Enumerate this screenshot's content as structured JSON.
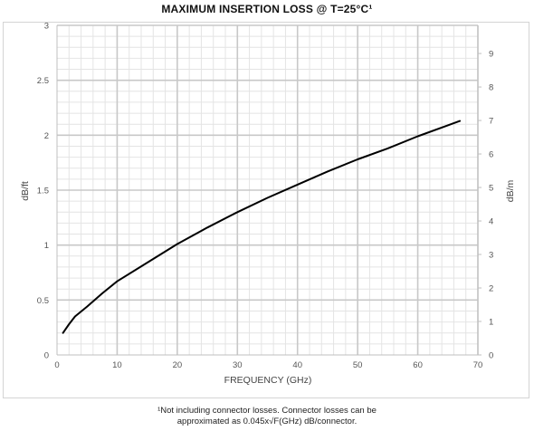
{
  "chart_data": {
    "type": "line",
    "title": "MAXIMUM INSERTION LOSS @ T=25°C¹",
    "xlabel": "FREQUENCY (GHz)",
    "ylabel": "dB/ft",
    "y2label": "dB/m",
    "xlim": [
      0,
      70
    ],
    "ylim": [
      0,
      3
    ],
    "y2lim": [
      0,
      9.84
    ],
    "xticks": [
      "0",
      "10",
      "20",
      "30",
      "40",
      "50",
      "60",
      "70"
    ],
    "yticks": [
      "0",
      "0.5",
      "1",
      "1.5",
      "2",
      "2.5",
      "3"
    ],
    "y2ticks": [
      "0",
      "1",
      "2",
      "3",
      "4",
      "5",
      "6",
      "7",
      "8",
      "9"
    ],
    "grid": true,
    "series": [
      {
        "color": "#000000",
        "x": [
          1,
          2,
          3,
          5,
          7.5,
          10,
          15,
          20,
          25,
          30,
          35,
          40,
          45,
          50,
          55,
          60,
          65,
          67
        ],
        "y": [
          0.2,
          0.28,
          0.35,
          0.44,
          0.56,
          0.67,
          0.84,
          1.01,
          1.16,
          1.3,
          1.43,
          1.55,
          1.67,
          1.78,
          1.88,
          1.99,
          2.09,
          2.13
        ]
      }
    ]
  },
  "footnote": {
    "line1": "¹Not including connector losses.  Connector losses can be",
    "line2": "approximated as 0.045x√F(GHz) dB/connector."
  }
}
